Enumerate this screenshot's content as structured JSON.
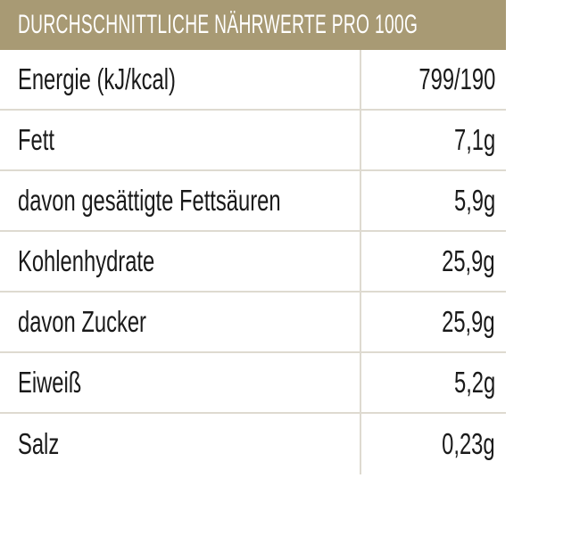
{
  "table": {
    "title": "DURCHSCHNITTLICHE NÄHRWERTE PRO 100G",
    "rows": [
      {
        "label": "Energie (kJ/kcal)",
        "value": "799/190"
      },
      {
        "label": "Fett",
        "value": "7,1g"
      },
      {
        "label": "davon gesättigte Fettsäuren",
        "value": "5,9g"
      },
      {
        "label": "Kohlenhydrate",
        "value": "25,9g"
      },
      {
        "label": "davon Zucker",
        "value": "25,9g"
      },
      {
        "label": "Eiweiß",
        "value": "5,2g"
      },
      {
        "label": "Salz",
        "value": "0,23g"
      }
    ]
  },
  "colors": {
    "header_background": "#a89a74",
    "header_text": "#ffffff",
    "divider": "#dedad0",
    "text": "#1a1a1a"
  }
}
